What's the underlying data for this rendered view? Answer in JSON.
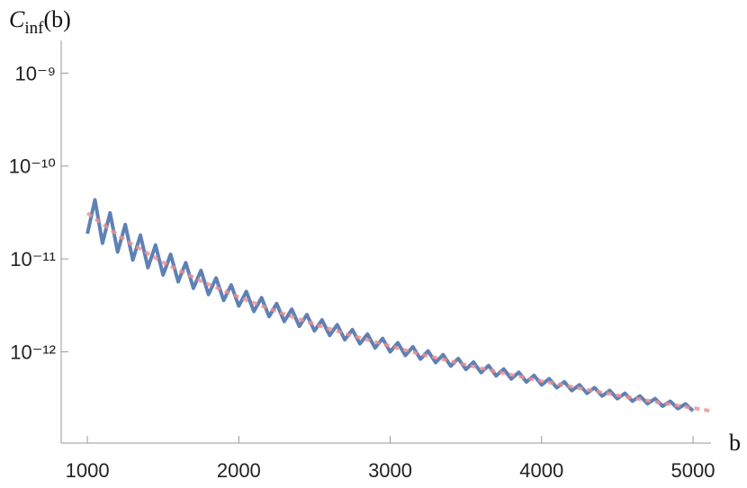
{
  "chart_data": {
    "type": "line",
    "log_y": true,
    "ylabel": "C",
    "ylabel_subscript": "inf",
    "ylabel_suffix": "(b)",
    "xlabel": "b",
    "xlim": [
      827,
      5119
    ],
    "ylim": [
      1.04e-13,
      2.25e-09
    ],
    "xticks": [
      1000,
      2000,
      3000,
      4000,
      5000
    ],
    "yticks": [
      {
        "value": 1e-09,
        "label": "10⁻⁹"
      },
      {
        "value": 1e-10,
        "label": "10⁻¹⁰"
      },
      {
        "value": 1e-11,
        "label": "10⁻¹¹"
      },
      {
        "value": 1e-12,
        "label": "10⁻¹²"
      }
    ],
    "series": [
      {
        "color": "#5e81b5",
        "style": "solid",
        "x": [
          1000,
          1050,
          1100,
          1150,
          1200,
          1250,
          1300,
          1350,
          1400,
          1450,
          1500,
          1550,
          1600,
          1650,
          1700,
          1750,
          1800,
          1850,
          1900,
          1950,
          2000,
          2050,
          2100,
          2150,
          2200,
          2250,
          2300,
          2350,
          2400,
          2450,
          2500,
          2550,
          2600,
          2650,
          2700,
          2750,
          2800,
          2850,
          2900,
          2950,
          3000,
          3050,
          3100,
          3150,
          3200,
          3250,
          3300,
          3350,
          3400,
          3450,
          3500,
          3550,
          3600,
          3650,
          3700,
          3750,
          3800,
          3850,
          3900,
          3950,
          4000,
          4050,
          4100,
          4150,
          4200,
          4250,
          4300,
          4350,
          4400,
          4450,
          4500,
          4550,
          4600,
          4650,
          4700,
          4750,
          4800,
          4850,
          4900,
          4950,
          5000
        ],
        "values": [
          1.87e-11,
          4.32e-11,
          1.48e-11,
          3.13e-11,
          1.19e-11,
          2.34e-11,
          9.74e-12,
          1.8e-11,
          8.05e-12,
          1.41e-11,
          6.73e-12,
          1.12e-11,
          5.68e-12,
          9.11e-12,
          4.83e-12,
          7.49e-12,
          4.14e-12,
          6.23e-12,
          3.58e-12,
          5.24e-12,
          3.11e-12,
          4.45e-12,
          2.72e-12,
          3.82e-12,
          2.39e-12,
          3.3e-12,
          2.12e-12,
          2.87e-12,
          1.88e-12,
          2.51e-12,
          1.68e-12,
          2.2e-12,
          1.5e-12,
          1.95e-12,
          1.35e-12,
          1.73e-12,
          1.22e-12,
          1.55e-12,
          1.1e-12,
          1.39e-12,
          1e-12,
          1.25e-12,
          9.14e-13,
          1.13e-12,
          8.34e-13,
          1.02e-12,
          7.65e-13,
          9.29e-13,
          7.02e-13,
          8.47e-13,
          6.46e-13,
          7.74e-13,
          5.96e-13,
          7.1e-13,
          5.51e-13,
          6.52e-13,
          5.1e-13,
          6.01e-13,
          4.73e-13,
          5.55e-13,
          4.4e-13,
          5.13e-13,
          4.1e-13,
          4.75e-13,
          3.82e-13,
          4.41e-13,
          3.57e-13,
          4.11e-13,
          3.34e-13,
          3.83e-13,
          3.13e-13,
          3.57e-13,
          2.94e-13,
          3.34e-13,
          2.76e-13,
          3.13e-13,
          2.6e-13,
          2.93e-13,
          2.44e-13,
          2.75e-13,
          2.31e-13
        ]
      },
      {
        "color": "#ef8f8f",
        "style": "dashed",
        "x": [
          1000,
          1250,
          1500,
          1750,
          2000,
          2250,
          2500,
          2750,
          3000,
          3250,
          3500,
          3750,
          4000,
          4250,
          4500,
          4750,
          5000,
          5119
        ],
        "values": [
          3.1e-11,
          1.587e-11,
          9.19e-12,
          5.78e-12,
          3.88e-12,
          2.72e-12,
          1.98e-12,
          1.49e-12,
          1.15e-12,
          9.03e-13,
          7.23e-13,
          5.88e-13,
          4.84e-13,
          4.04e-13,
          3.4e-13,
          2.89e-13,
          2.48e-13,
          2.31e-13
        ]
      }
    ]
  }
}
